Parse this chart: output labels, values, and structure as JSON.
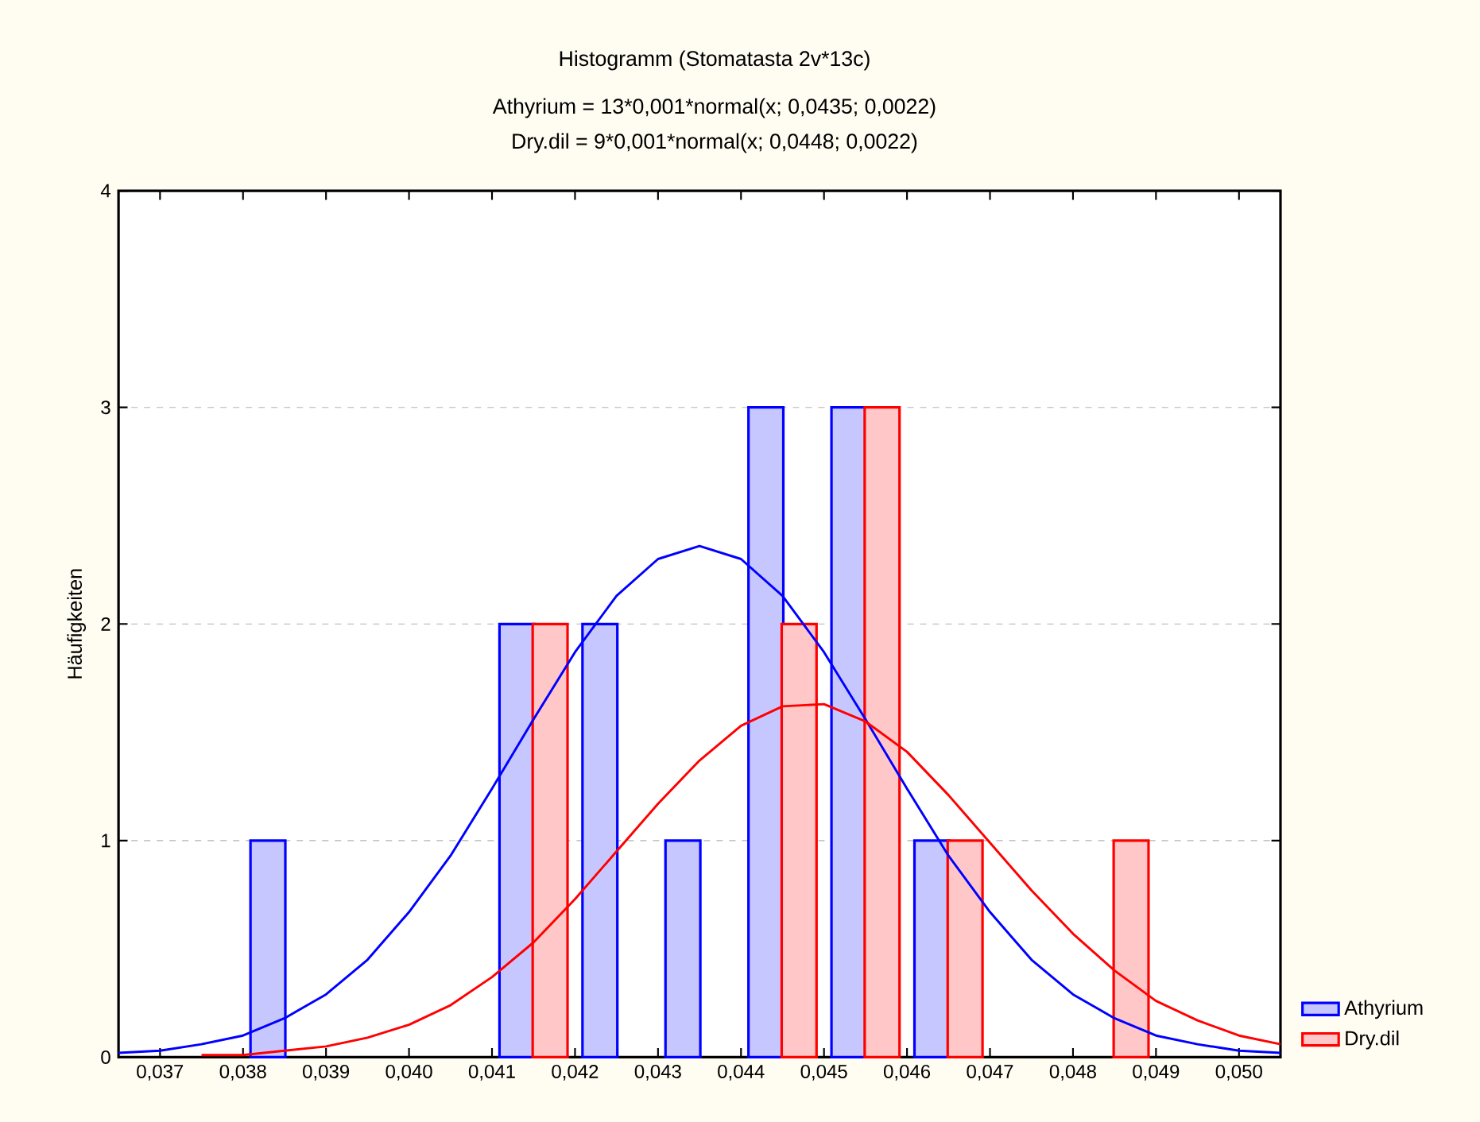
{
  "chart_data": {
    "type": "bar",
    "title": "Histogramm (Stomatasta 2v*13c)",
    "annotations": [
      "Athyrium = 13*0,001*normal(x; 0,0435; 0,0022)",
      "Dry.dil = 9*0,001*normal(x; 0,0448; 0,0022)"
    ],
    "ylabel": "Häufigkeiten",
    "xlim": [
      0.0365,
      0.0505
    ],
    "ylim": [
      0,
      4
    ],
    "xticks": [
      {
        "value": 0.037,
        "label": "0,037"
      },
      {
        "value": 0.038,
        "label": "0,038"
      },
      {
        "value": 0.039,
        "label": "0,039"
      },
      {
        "value": 0.04,
        "label": "0,040"
      },
      {
        "value": 0.041,
        "label": "0,041"
      },
      {
        "value": 0.042,
        "label": "0,042"
      },
      {
        "value": 0.043,
        "label": "0,043"
      },
      {
        "value": 0.044,
        "label": "0,044"
      },
      {
        "value": 0.045,
        "label": "0,045"
      },
      {
        "value": 0.046,
        "label": "0,046"
      },
      {
        "value": 0.047,
        "label": "0,047"
      },
      {
        "value": 0.048,
        "label": "0,048"
      },
      {
        "value": 0.049,
        "label": "0,049"
      },
      {
        "value": 0.05,
        "label": "0,050"
      }
    ],
    "yticks": [
      0,
      1,
      2,
      3,
      4
    ],
    "grid": "y",
    "legend": "bottom right",
    "series": [
      {
        "name": "Athyrium",
        "color": "#0000ff",
        "x": [
          0.0383,
          0.0413,
          0.0423,
          0.0433,
          0.0443,
          0.0453,
          0.0463
        ],
        "values": [
          1,
          2,
          2,
          1,
          3,
          3,
          1
        ]
      },
      {
        "name": "Dry.dil",
        "color": "#ff0000",
        "x": [
          0.0417,
          0.0447,
          0.0457,
          0.0467,
          0.0487
        ],
        "values": [
          2,
          2,
          3,
          1,
          1
        ]
      },
      {
        "type": "line",
        "color": "#0000ff",
        "x": [
          0.0365,
          0.037,
          0.0375,
          0.038,
          0.0385,
          0.039,
          0.0395,
          0.04,
          0.0405,
          0.041,
          0.0415,
          0.042,
          0.0425,
          0.043,
          0.0435,
          0.044,
          0.0445,
          0.045,
          0.0455,
          0.046,
          0.0465,
          0.047,
          0.0475,
          0.048,
          0.0485,
          0.049,
          0.0495,
          0.05,
          0.0505
        ],
        "values": [
          0.02,
          0.03,
          0.06,
          0.1,
          0.18,
          0.29,
          0.45,
          0.67,
          0.93,
          1.24,
          1.56,
          1.87,
          2.13,
          2.3,
          2.36,
          2.3,
          2.13,
          1.87,
          1.56,
          1.24,
          0.93,
          0.67,
          0.45,
          0.29,
          0.18,
          0.1,
          0.06,
          0.03,
          0.02
        ]
      },
      {
        "type": "line",
        "color": "#ff0000",
        "x": [
          0.0375,
          0.038,
          0.0385,
          0.039,
          0.0395,
          0.04,
          0.0405,
          0.041,
          0.0415,
          0.042,
          0.0425,
          0.043,
          0.0435,
          0.044,
          0.0445,
          0.045,
          0.0455,
          0.046,
          0.0465,
          0.047,
          0.0475,
          0.048,
          0.0485,
          0.049,
          0.0495,
          0.05,
          0.0505
        ],
        "values": [
          0.01,
          0.01,
          0.03,
          0.05,
          0.09,
          0.15,
          0.24,
          0.37,
          0.53,
          0.73,
          0.95,
          1.17,
          1.37,
          1.53,
          1.62,
          1.63,
          1.55,
          1.41,
          1.21,
          0.99,
          0.77,
          0.57,
          0.4,
          0.26,
          0.17,
          0.1,
          0.06
        ]
      }
    ]
  }
}
